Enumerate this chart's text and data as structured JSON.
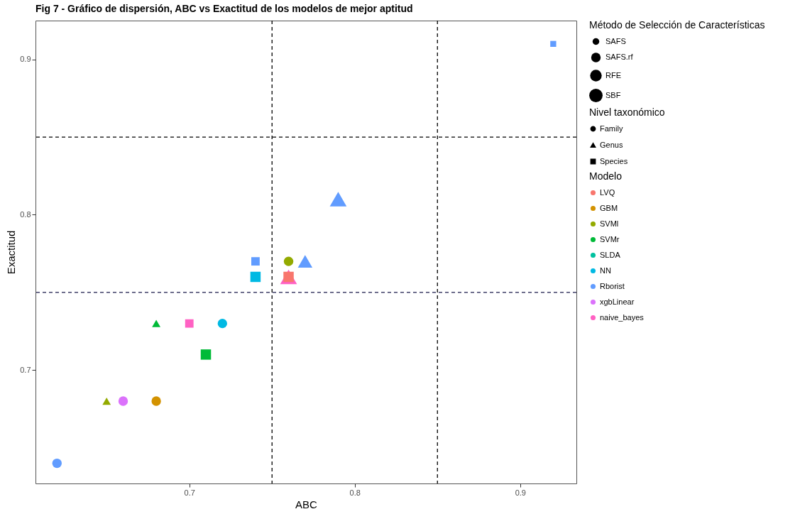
{
  "chart_data": {
    "type": "bubble",
    "title": "Fig 7 - Gráfico de dispersión, ABC vs Exactitud de los modelos de mejor aptitud",
    "xlabel": "ABC",
    "ylabel": "Exactitud",
    "legend_title": [
      "Modelo",
      "Método de Selección de Características",
      "Nivel taxonómico"
    ],
    "annotations": [
      "Family",
      "Genus",
      "Species"
    ],
    "size_legend": [
      {
        "value": 1,
        "label": "SAFS"
      },
      {
        "value": 2,
        "label": "SAFS.rf"
      },
      {
        "value": 3,
        "label": "RFE"
      },
      {
        "value": 4,
        "label": "SBF"
      }
    ],
    "xlim": [
      0.607,
      0.934
    ],
    "xticks": [
      0.7,
      0.8,
      0.9
    ],
    "ylim": [
      0.627,
      0.925
    ],
    "yticks": [
      0.7,
      0.8,
      0.9
    ],
    "grid": false,
    "legend": "right",
    "ref_lines": [
      {
        "axis": "x",
        "value": 0.75,
        "color": "#000000",
        "line_style": "dashed"
      },
      {
        "axis": "x",
        "value": 0.85,
        "color": "#000000",
        "line_style": "dashed"
      },
      {
        "axis": "y",
        "value": 0.75,
        "color": "#1a1a4a",
        "line_style": "dashed"
      },
      {
        "axis": "y",
        "value": 0.85,
        "color": "#000000",
        "line_style": "dashed"
      }
    ],
    "series": [
      {
        "name": "LVQ",
        "color": "#f8766d"
      },
      {
        "name": "GBM",
        "color": "#d39200"
      },
      {
        "name": "SVMl",
        "color": "#93aa00"
      },
      {
        "name": "SVMr",
        "color": "#00ba38"
      },
      {
        "name": "SLDA",
        "color": "#00c19f"
      },
      {
        "name": "NN",
        "color": "#00b9e3"
      },
      {
        "name": "Rborist",
        "color": "#619cff"
      },
      {
        "name": "xgbLinear",
        "color": "#db72fb"
      },
      {
        "name": "naive_bayes",
        "color": "#ff61c3"
      },
      {
        "marker": "circle",
        "x": [
          0.68,
          0.76,
          0.72,
          0.62,
          0.66
        ],
        "values": [
          0.68,
          0.77,
          0.73,
          0.64,
          0.68
        ],
        "sizes": [
          2,
          2,
          2,
          2,
          2
        ],
        "colors": [
          "#d39200",
          "#93aa00",
          "#00b9e3",
          "#619cff",
          "#db72fb"
        ]
      },
      {
        "marker": "triangle",
        "x": [
          0.65,
          0.68,
          0.79,
          0.77,
          0.76
        ],
        "values": [
          0.68,
          0.73,
          0.81,
          0.77,
          0.76
        ],
        "sizes": [
          1,
          1,
          4,
          3,
          4
        ],
        "colors": [
          "#93aa00",
          "#00ba38",
          "#619cff",
          "#619cff",
          "#ff61c3"
        ]
      },
      {
        "marker": "square",
        "x": [
          0.76,
          0.71,
          0.74,
          0.92,
          0.74,
          0.7
        ],
        "values": [
          0.76,
          0.71,
          0.76,
          0.91,
          0.77,
          0.73
        ],
        "sizes": [
          3,
          3,
          3,
          1,
          2,
          2
        ],
        "colors": [
          "#f8766d",
          "#00ba38",
          "#00b9e3",
          "#619cff",
          "#619cff",
          "#ff61c3"
        ]
      }
    ]
  }
}
